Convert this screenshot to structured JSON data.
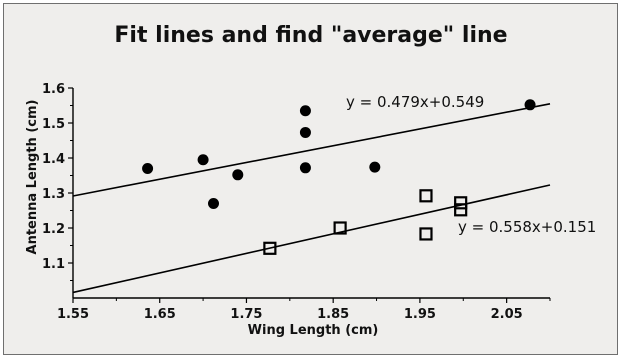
{
  "chart_data": {
    "type": "scatter",
    "title": "Fit lines and find \"average\" line",
    "xlabel": "Wing Length (cm)",
    "ylabel": "Antenna Length (cm)",
    "xlim": [
      1.55,
      2.1
    ],
    "ylim": [
      1.0,
      1.6
    ],
    "x_ticks": [
      1.55,
      1.65,
      1.75,
      1.85,
      1.95,
      2.05
    ],
    "x_tick_labels": [
      "1.55",
      "1.65",
      "1.75",
      "1.85",
      "1.95",
      "2.05"
    ],
    "y_ticks": [
      1.1,
      1.2,
      1.3,
      1.4,
      1.5,
      1.6
    ],
    "y_tick_labels": [
      "1.1",
      "1.2",
      "1.3",
      "1.4",
      "1.5",
      "1.6"
    ],
    "grid": false,
    "legend": "none",
    "series": [
      {
        "marker": "filled-circle",
        "color": "#000000",
        "x": [
          1.636,
          1.7,
          1.712,
          1.74,
          1.818,
          1.818,
          1.818,
          1.898,
          2.077
        ],
        "y": [
          1.37,
          1.395,
          1.27,
          1.352,
          1.535,
          1.473,
          1.372,
          1.374,
          1.552
        ],
        "fit": {
          "slope": 0.479,
          "intercept": 0.549,
          "label": "y = 0.479x+0.549"
        }
      },
      {
        "marker": "open-square",
        "color": "#000000",
        "x": [
          1.777,
          1.858,
          1.957,
          1.957,
          1.997,
          1.997
        ],
        "y": [
          1.142,
          1.2,
          1.292,
          1.183,
          1.272,
          1.252
        ],
        "fit": {
          "slope": 0.558,
          "intercept": 0.151,
          "label": "y = 0.558x+0.151"
        }
      }
    ]
  }
}
